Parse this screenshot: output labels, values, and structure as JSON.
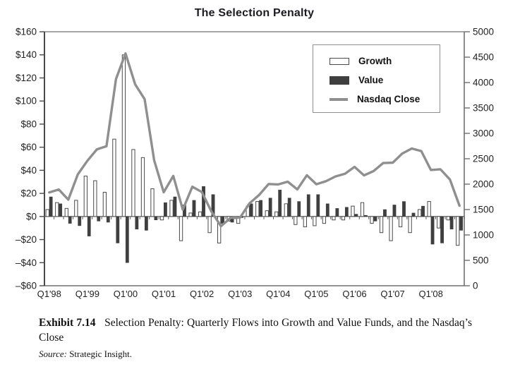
{
  "chart": {
    "title": "The Selection Penalty",
    "legend": {
      "items": [
        {
          "label": "Growth",
          "swatch": "growth-bar-swatch"
        },
        {
          "label": "Value",
          "swatch": "value-bar-swatch"
        },
        {
          "label": "Nasdaq Close",
          "swatch": "nasdaq-line-swatch"
        }
      ]
    },
    "colors": {
      "growth_fill": "#ffffff",
      "growth_border": "#4a4a4a",
      "value_fill": "#3f3f3f",
      "nasdaq_line": "#8f8f8f",
      "axis_dark": "#4a4a4a",
      "axis_light": "#8a8a8a",
      "text": "#222222"
    }
  },
  "chart_data": {
    "type": "bar",
    "note": "Dual-axis combo: paired quarterly bars (left $ axis, billions) plus Nasdaq close line (right axis)",
    "title": "The Selection Penalty",
    "categories": [
      "Q1'98",
      "Q2'98",
      "Q3'98",
      "Q4'98",
      "Q1'99",
      "Q2'99",
      "Q3'99",
      "Q4'99",
      "Q1'00",
      "Q2'00",
      "Q3'00",
      "Q4'00",
      "Q1'01",
      "Q2'01",
      "Q3'01",
      "Q4'01",
      "Q1'02",
      "Q2'02",
      "Q3'02",
      "Q4'02",
      "Q1'03",
      "Q2'03",
      "Q3'03",
      "Q4'03",
      "Q1'04",
      "Q2'04",
      "Q3'04",
      "Q4'04",
      "Q1'05",
      "Q2'05",
      "Q3'05",
      "Q4'05",
      "Q1'06",
      "Q2'06",
      "Q3'06",
      "Q4'06",
      "Q1'07",
      "Q2'07",
      "Q3'07",
      "Q4'07",
      "Q1'08",
      "Q2'08",
      "Q3'08",
      "Q4'08"
    ],
    "series": [
      {
        "name": "Growth",
        "axis": "left",
        "style": "bar-outline",
        "values": [
          6,
          12,
          7,
          14,
          35,
          31,
          21,
          67,
          140,
          58,
          51,
          24,
          -3,
          14,
          -21,
          3,
          4,
          -14,
          -23,
          -4,
          -6,
          9,
          13,
          5,
          4,
          11,
          -7,
          -9,
          -8,
          -6,
          -3,
          -3,
          9,
          12,
          -6,
          -14,
          -21,
          -9,
          -14,
          6,
          13,
          -10,
          -3,
          -25
        ]
      },
      {
        "name": "Value",
        "axis": "left",
        "style": "bar-filled",
        "values": [
          17,
          11,
          -6,
          -8,
          -17,
          -4,
          -5,
          -23,
          -40,
          -11,
          -12,
          -3,
          12,
          17,
          10,
          14,
          26,
          19,
          -6,
          -5,
          -1,
          11,
          14,
          16,
          23,
          16,
          13,
          19,
          19,
          11,
          7,
          8,
          2,
          1,
          -4,
          6,
          10,
          13,
          3,
          9,
          -24,
          -23,
          -11,
          -12
        ]
      },
      {
        "name": "Nasdaq Close",
        "axis": "right",
        "style": "line",
        "values": [
          1836,
          1895,
          1694,
          2193,
          2461,
          2686,
          2746,
          4069,
          4573,
          3966,
          3672,
          2470,
          1840,
          2161,
          1498,
          1950,
          1845,
          1463,
          1172,
          1336,
          1341,
          1623,
          1787,
          2003,
          1994,
          2048,
          1897,
          2175,
          1999,
          2057,
          2152,
          2205,
          2340,
          2172,
          2258,
          2415,
          2422,
          2603,
          2702,
          2652,
          2279,
          2293,
          2092,
          1577
        ]
      }
    ],
    "left_axis": {
      "min": -60,
      "max": 160,
      "step": 20,
      "tick_labels": [
        "$160",
        "$140",
        "$120",
        "$100",
        "$80",
        "$60",
        "$40",
        "$20",
        "$0",
        "–$20",
        "–$40",
        "–$60"
      ]
    },
    "right_axis": {
      "min": 0,
      "max": 5000,
      "step": 500,
      "tick_labels": [
        "5000",
        "4500",
        "4000",
        "3500",
        "3000",
        "2500",
        "2000",
        "1500",
        "1000",
        "500",
        "0"
      ]
    },
    "x_tick_labels": [
      "Q1'98",
      "Q1'99",
      "Q1'00",
      "Q1'01",
      "Q1'02",
      "Q1'03",
      "Q1'04",
      "Q1'05",
      "Q1'06",
      "Q1'07",
      "Q1'08"
    ],
    "legend_position": "top-right-inside",
    "grid": false
  },
  "caption": {
    "exhibit_label": "Exhibit 7.14",
    "title_text": "Selection Penalty: Quarterly Flows into Growth and Value Funds, and the Nasdaq’s Close",
    "source_label": "Source:",
    "source_text": "Strategic Insight."
  }
}
